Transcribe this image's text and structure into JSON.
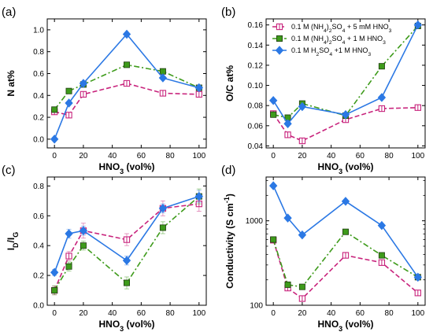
{
  "chart_data": [
    {
      "panel_label": "(a)",
      "type": "line",
      "ylabel": "N at%",
      "xlabel": "HNO3 (vol%)",
      "xlim": [
        -5,
        105
      ],
      "ylim": [
        -0.08,
        1.1
      ],
      "yticks": [
        "0.0",
        "0.2",
        "0.4",
        "0.6",
        "0.8",
        "1.0"
      ],
      "xticks": [
        "0",
        "20",
        "40",
        "60",
        "80",
        "100"
      ],
      "series": [
        {
          "color": "#c8237c",
          "marker": "square-open",
          "dash": "dash",
          "x": [
            0,
            10,
            20,
            50,
            75,
            100
          ],
          "y": [
            0.25,
            0.22,
            0.41,
            0.51,
            0.42,
            0.41
          ]
        },
        {
          "color": "#3e9b1b",
          "marker": "square",
          "dash": "dashdot",
          "x": [
            0,
            10,
            20,
            50,
            75,
            100
          ],
          "y": [
            0.27,
            0.44,
            0.5,
            0.68,
            0.62,
            0.47
          ]
        },
        {
          "color": "#2b78e4",
          "marker": "diamond",
          "dash": "solid",
          "x": [
            0,
            10,
            20,
            50,
            75,
            100
          ],
          "y": [
            0.0,
            0.33,
            0.51,
            0.96,
            0.56,
            0.47
          ]
        }
      ]
    },
    {
      "panel_label": "(b)",
      "type": "line",
      "ylabel": "O/C at%",
      "xlabel": "HNO3 (vol%)",
      "xlim": [
        -5,
        105
      ],
      "ylim": [
        0.038,
        0.166
      ],
      "yticks": [
        "0.04",
        "0.06",
        "0.08",
        "0.10",
        "0.12",
        "0.14",
        "0.16"
      ],
      "xticks": [
        "0",
        "20",
        "40",
        "60",
        "80",
        "100"
      ],
      "legend": [
        "0.1 M (NH4)2SO4 + 5 mM HNO3",
        "0.1 M (NH4)2SO4 + 1 M HNO3",
        "0.1 M H2SO4 +1 M HNO3"
      ],
      "series": [
        {
          "color": "#c8237c",
          "marker": "square-open",
          "dash": "dash",
          "x": [
            0,
            10,
            20,
            50,
            75,
            100
          ],
          "y": [
            0.072,
            0.051,
            0.045,
            0.066,
            0.077,
            0.078
          ]
        },
        {
          "color": "#3e9b1b",
          "marker": "square",
          "dash": "dashdot",
          "x": [
            0,
            10,
            20,
            50,
            75,
            100
          ],
          "y": [
            0.071,
            0.068,
            0.082,
            0.07,
            0.119,
            0.159
          ]
        },
        {
          "color": "#2b78e4",
          "marker": "diamond",
          "dash": "solid",
          "x": [
            0,
            10,
            20,
            50,
            75,
            100
          ],
          "y": [
            0.085,
            0.062,
            0.079,
            0.071,
            0.088,
            0.16
          ]
        }
      ]
    },
    {
      "panel_label": "(c)",
      "type": "line",
      "ylabel": "ID/IG",
      "xlabel": "HNO3 (vol%)",
      "xlim": [
        -5,
        105
      ],
      "ylim": [
        0.0,
        0.86
      ],
      "yticks": [
        "0.0",
        "0.2",
        "0.4",
        "0.6",
        "0.8"
      ],
      "xticks": [
        "0",
        "20",
        "40",
        "60",
        "80",
        "100"
      ],
      "series": [
        {
          "color": "#c8237c",
          "marker": "square-open",
          "dash": "dash",
          "x": [
            0,
            10,
            20,
            50,
            75,
            100
          ],
          "y": [
            0.1,
            0.33,
            0.5,
            0.44,
            0.65,
            0.68
          ],
          "err": [
            0.03,
            0.03,
            0.05,
            0.04,
            0.05,
            0.05
          ]
        },
        {
          "color": "#3e9b1b",
          "marker": "square",
          "dash": "dashdot",
          "x": [
            0,
            10,
            20,
            50,
            75,
            100
          ],
          "y": [
            0.1,
            0.26,
            0.4,
            0.15,
            0.52,
            0.73
          ],
          "err": [
            0.03,
            0.03,
            0.03,
            0.04,
            0.04,
            0.05
          ]
        },
        {
          "color": "#2b78e4",
          "marker": "diamond",
          "dash": "solid",
          "x": [
            0,
            10,
            20,
            50,
            75,
            100
          ],
          "y": [
            0.22,
            0.48,
            0.5,
            0.3,
            0.65,
            0.73
          ],
          "err": [
            0.02,
            0.03,
            0.03,
            0.03,
            0.03,
            0.04
          ]
        }
      ]
    },
    {
      "panel_label": "(d)",
      "type": "line",
      "ylabel": "Conductivity (S cm-1)",
      "xlabel": "HNO3 (vol%)",
      "scale": "log",
      "xlim": [
        -5,
        105
      ],
      "ylim": [
        100,
        3300
      ],
      "yticks": [
        "100",
        "1000"
      ],
      "xticks": [
        "0",
        "20",
        "40",
        "60",
        "80",
        "100"
      ],
      "series": [
        {
          "color": "#c8237c",
          "marker": "square-open",
          "dash": "dash",
          "x": [
            0,
            10,
            20,
            50,
            75,
            100
          ],
          "y": [
            590,
            160,
            120,
            390,
            320,
            140
          ]
        },
        {
          "color": "#3e9b1b",
          "marker": "square",
          "dash": "dashdot",
          "x": [
            0,
            10,
            20,
            50,
            75,
            100
          ],
          "y": [
            600,
            175,
            165,
            740,
            390,
            215
          ]
        },
        {
          "color": "#2b78e4",
          "marker": "diamond",
          "dash": "solid",
          "x": [
            0,
            10,
            20,
            50,
            75,
            100
          ],
          "y": [
            2600,
            1080,
            680,
            1700,
            880,
            215
          ]
        }
      ]
    }
  ]
}
